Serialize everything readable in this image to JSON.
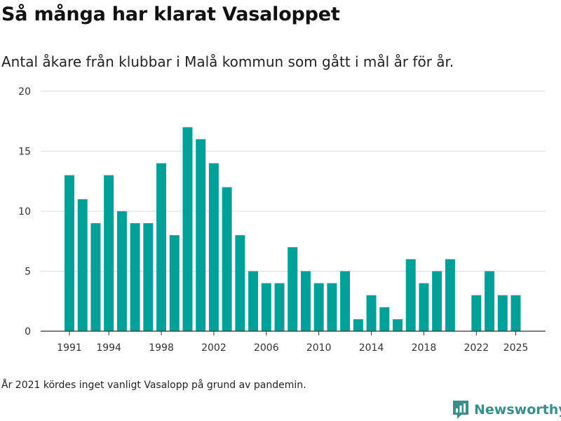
{
  "header": {
    "title": "Så många har klarat Vasaloppet",
    "subtitle": "Antal åkare från klubbar i Malå kommun som gått i mål år för år."
  },
  "footer": {
    "note": "År 2021 kördes inget vanligt Vasalopp på grund av pandemin.",
    "brand": "Newsworthy"
  },
  "colors": {
    "bar": "#00a098",
    "grid": "#dddddd",
    "axis": "#333333",
    "brand": "#3a8f88"
  },
  "chart_data": {
    "type": "bar",
    "x": [
      1991,
      1992,
      1993,
      1994,
      1995,
      1996,
      1997,
      1998,
      1999,
      2000,
      2001,
      2002,
      2003,
      2004,
      2005,
      2006,
      2007,
      2008,
      2009,
      2010,
      2011,
      2012,
      2013,
      2014,
      2015,
      2016,
      2017,
      2018,
      2019,
      2020,
      2021,
      2022,
      2023,
      2024,
      2025
    ],
    "values": [
      13,
      11,
      9,
      13,
      10,
      9,
      9,
      14,
      8,
      17,
      16,
      14,
      12,
      8,
      5,
      4,
      4,
      7,
      5,
      4,
      4,
      5,
      1,
      3,
      2,
      1,
      6,
      4,
      5,
      6,
      null,
      3,
      5,
      3,
      3
    ],
    "xticks": [
      1991,
      1994,
      1998,
      2002,
      2006,
      2010,
      2014,
      2018,
      2022,
      2025
    ],
    "yticks": [
      0,
      5,
      10,
      15,
      20
    ],
    "ylim": [
      0,
      20
    ],
    "grid": true,
    "title": "",
    "xlabel": "",
    "ylabel": ""
  }
}
